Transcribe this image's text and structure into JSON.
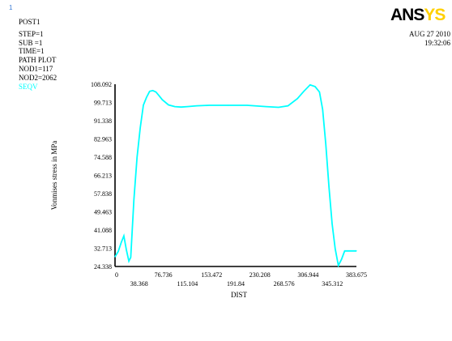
{
  "window_number": "1",
  "info_lines": [
    "POST1",
    "STEP=1",
    "SUB =1",
    "TIME=1",
    "PATH PLOT",
    "NOD1=117",
    "NOD2=2062"
  ],
  "logo": {
    "main": "ANS",
    "tail": "YS"
  },
  "date": "AUG 27 2010",
  "time": "19:32:06",
  "colors": {
    "curve": "#00ffff",
    "axes": "#000000",
    "background": "#ffffff",
    "logo_tail": "#ffd000"
  },
  "chart_data": {
    "type": "line",
    "xlabel": "DIST",
    "ylabel": "Vonmises stress in MPa",
    "xlim": [
      0,
      383.675
    ],
    "ylim": [
      24.338,
      108.092
    ],
    "x_ticks": [
      "0",
      "38.368",
      "76.736",
      "115.104",
      "153.472",
      "191.84",
      "230.208",
      "268.576",
      "306.944",
      "345.312",
      "383.675"
    ],
    "y_ticks": [
      "24.338",
      "32.713",
      "41.088",
      "49.463",
      "57.838",
      "66.213",
      "74.588",
      "82.963",
      "91.338",
      "99.713",
      "108.092"
    ],
    "grid": false,
    "series": [
      {
        "name": "SEQV",
        "x": [
          0,
          5,
          10,
          14,
          18,
          22,
          25,
          30,
          35,
          40,
          45,
          50,
          55,
          60,
          65,
          70,
          75,
          85,
          95,
          105,
          115,
          130,
          150,
          180,
          210,
          240,
          260,
          275,
          290,
          300,
          310,
          318,
          325,
          330,
          335,
          340,
          345,
          350,
          355,
          360,
          365,
          370,
          375,
          380,
          383.675
        ],
        "y": [
          28.8,
          31.2,
          35.5,
          38.4,
          32.0,
          26.8,
          28.5,
          55.0,
          74.5,
          88.0,
          98.5,
          102.0,
          104.8,
          105.2,
          104.5,
          102.8,
          101.0,
          98.6,
          97.8,
          97.6,
          97.8,
          98.2,
          98.4,
          98.4,
          98.4,
          97.8,
          97.5,
          98.2,
          101.5,
          104.8,
          107.8,
          107.0,
          104.5,
          96.5,
          80.5,
          61.0,
          44.0,
          32.5,
          24.8,
          27.6,
          31.5,
          31.5,
          31.5,
          31.5,
          31.5
        ]
      }
    ]
  }
}
